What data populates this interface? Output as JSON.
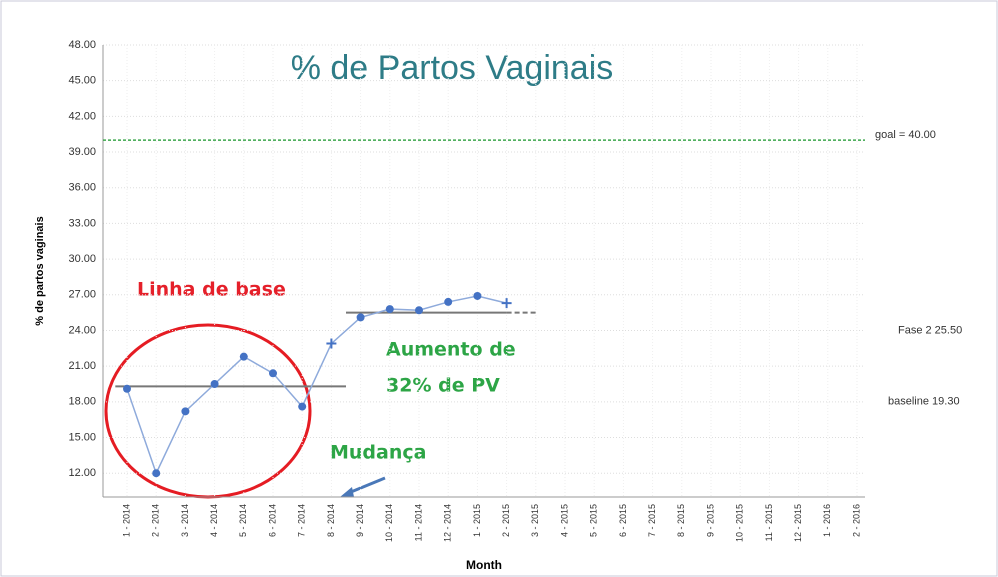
{
  "chart_data": {
    "type": "line",
    "title": "% de Partos Vaginais",
    "y_label": "% de partos vaginais",
    "x_label": "Month",
    "categories": [
      "1 - 2014",
      "2 - 2014",
      "3 - 2014",
      "4 - 2014",
      "5 - 2014",
      "6 - 2014",
      "7 - 2014",
      "8 - 2014",
      "9 - 2014",
      "10 - 2014",
      "11 - 2014",
      "12 - 2014",
      "1 - 2015",
      "2 - 2015",
      "3 - 2015",
      "4 - 2015",
      "5 - 2015",
      "6 - 2015",
      "7 - 2015",
      "8 - 2015",
      "9 - 2015",
      "10 - 2015",
      "11 - 2015",
      "12 - 2015",
      "1 - 2016",
      "2 - 2016"
    ],
    "series": [
      {
        "name": "% de partos vaginais",
        "color": "#4472c4",
        "values": [
          19.1,
          12.0,
          17.2,
          19.5,
          21.8,
          20.4,
          17.6,
          22.9,
          25.1,
          25.8,
          25.7,
          26.4,
          26.9,
          26.3,
          null,
          null,
          null,
          null,
          null,
          null,
          null,
          null,
          null,
          null,
          null,
          null
        ]
      }
    ],
    "ylim": [
      10,
      48
    ],
    "yticks": [
      {
        "value": 12,
        "label": "12.00"
      },
      {
        "value": 15,
        "label": "15.00"
      },
      {
        "value": 18,
        "label": "18.00"
      },
      {
        "value": 21,
        "label": "21.00"
      },
      {
        "value": 24,
        "label": "24.00"
      },
      {
        "value": 27,
        "label": "27.00"
      },
      {
        "value": 30,
        "label": "30.00"
      },
      {
        "value": 33,
        "label": "33.00"
      },
      {
        "value": 36,
        "label": "36.00"
      },
      {
        "value": 39,
        "label": "39.00"
      },
      {
        "value": 42,
        "label": "42.00"
      },
      {
        "value": 45,
        "label": "45.00"
      },
      {
        "value": 48,
        "label": "48.00"
      }
    ],
    "grid": true,
    "reference_lines": [
      {
        "label": "goal = 40.00",
        "value": 40,
        "color": "#3aa64a"
      },
      {
        "label": "Fase 2 25.50",
        "value": 25.5,
        "color": "#777777"
      },
      {
        "label": "baseline 19.30",
        "value": 19.3,
        "color": "#777777"
      }
    ],
    "annotations": [
      "Linha de base",
      "Aumento de",
      "32% de PV",
      "Mudança"
    ]
  }
}
